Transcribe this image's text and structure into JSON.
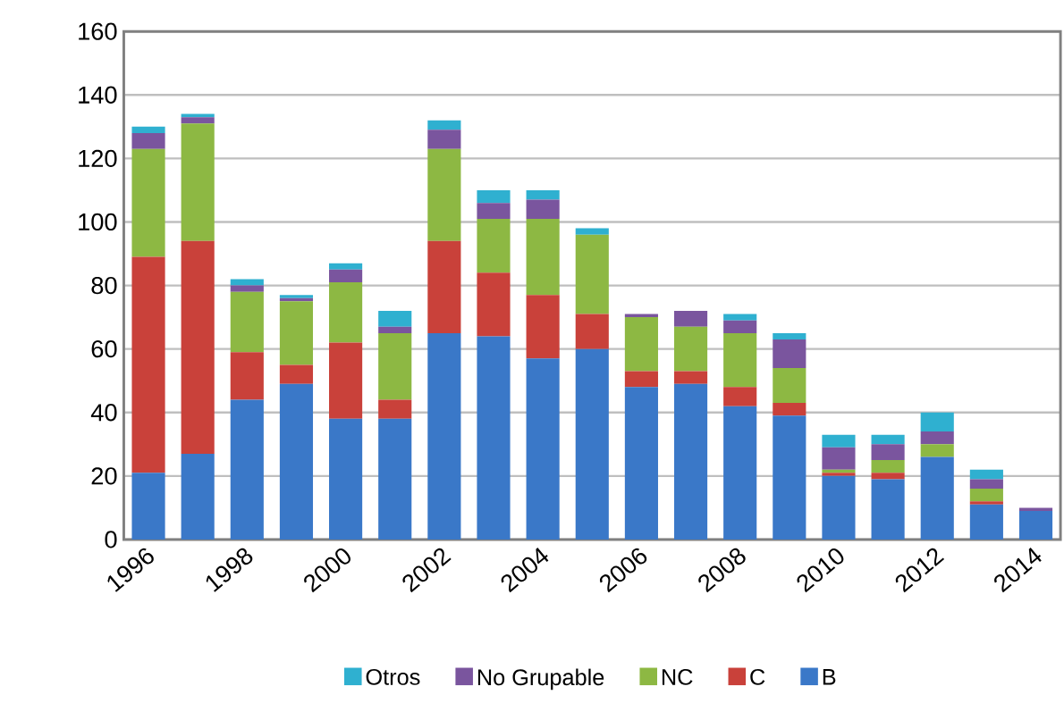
{
  "chart_data": {
    "type": "bar",
    "stacked": true,
    "grid": "y",
    "legend": "bottom",
    "categories": [
      "1996",
      null,
      "1998",
      null,
      "2000",
      null,
      "2002",
      null,
      "2004",
      null,
      "2006",
      null,
      "2008",
      null,
      "2010",
      null,
      "2012",
      null,
      "2014"
    ],
    "ylim": [
      0,
      160
    ],
    "yticks": [
      0,
      20,
      40,
      60,
      80,
      100,
      120,
      140,
      160
    ],
    "series": [
      {
        "name": "B",
        "color": "#3a78c8",
        "values": [
          21,
          27,
          44,
          49,
          38,
          38,
          65,
          64,
          57,
          60,
          48,
          49,
          42,
          39,
          20,
          19,
          26,
          11,
          9
        ]
      },
      {
        "name": "C",
        "color": "#c9413a",
        "values": [
          68,
          67,
          15,
          6,
          24,
          6,
          29,
          20,
          20,
          11,
          5,
          4,
          6,
          4,
          1,
          2,
          0,
          1,
          0
        ]
      },
      {
        "name": "NC",
        "color": "#8db843",
        "values": [
          34,
          37,
          19,
          20,
          19,
          21,
          29,
          17,
          24,
          25,
          17,
          14,
          17,
          11,
          1,
          4,
          4,
          4,
          0
        ]
      },
      {
        "name": "No Grupable",
        "color": "#7a559e",
        "values": [
          5,
          2,
          2,
          1,
          4,
          2,
          6,
          5,
          6,
          0,
          1,
          5,
          4,
          9,
          7,
          5,
          4,
          3,
          1
        ]
      },
      {
        "name": "Otros",
        "color": "#2fb0d0",
        "values": [
          2,
          1,
          2,
          1,
          2,
          5,
          3,
          4,
          3,
          2,
          0,
          0,
          2,
          2,
          4,
          3,
          6,
          3,
          0
        ]
      }
    ]
  }
}
